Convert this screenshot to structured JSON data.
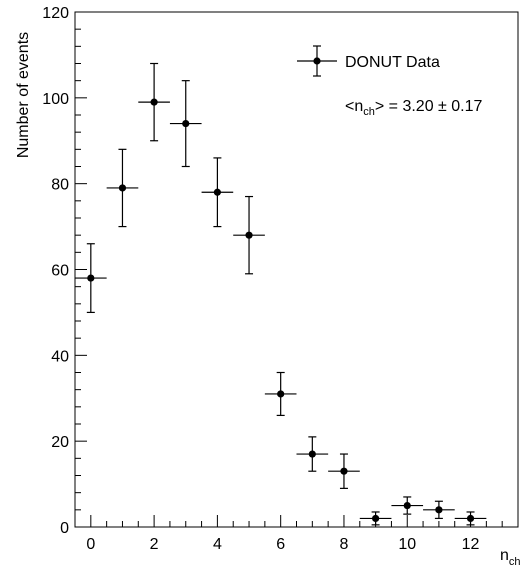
{
  "chart_data": {
    "type": "scatter",
    "title": "",
    "xlabel": {
      "main": "n",
      "sub": "ch"
    },
    "ylabel": "Number of events",
    "xlim": [
      -0.5,
      13.5
    ],
    "ylim": [
      0,
      120
    ],
    "grid": false,
    "legend_position": "top-right",
    "x_ticks": [
      0,
      2,
      4,
      6,
      8,
      10,
      12
    ],
    "y_ticks": [
      0,
      20,
      40,
      60,
      80,
      100,
      120
    ],
    "series": [
      {
        "name": "DONUT Data",
        "color": "#000000",
        "x_err": 0.5,
        "points": [
          {
            "x": 0,
            "y": 58,
            "yerr": 8
          },
          {
            "x": 1,
            "y": 79,
            "yerr": 9
          },
          {
            "x": 2,
            "y": 99,
            "yerr": 9
          },
          {
            "x": 3,
            "y": 94,
            "yerr": 10
          },
          {
            "x": 4,
            "y": 78,
            "yerr": 8
          },
          {
            "x": 5,
            "y": 68,
            "yerr": 9
          },
          {
            "x": 6,
            "y": 31,
            "yerr": 5
          },
          {
            "x": 7,
            "y": 17,
            "yerr": 4
          },
          {
            "x": 8,
            "y": 13,
            "yerr": 4
          },
          {
            "x": 9,
            "y": 2,
            "yerr": 1.5
          },
          {
            "x": 10,
            "y": 5,
            "yerr": 2
          },
          {
            "x": 11,
            "y": 4,
            "yerr": 2
          },
          {
            "x": 12,
            "y": 2,
            "yerr": 1.5
          }
        ]
      }
    ],
    "annotations": [
      {
        "prefix": "<n",
        "sub": "ch",
        "suffix": "> = 3.20 ± 0.17"
      }
    ]
  }
}
